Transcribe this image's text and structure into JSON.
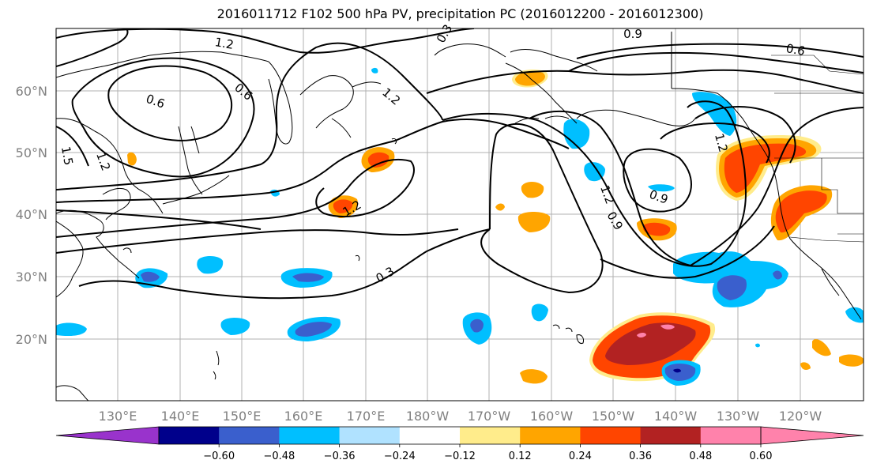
{
  "title": "2016011712 F102 500 hPa PV, precipitation PC (2016012200 - 2016012300)",
  "map": {
    "lat_labels": [
      "60°N",
      "50°N",
      "40°N",
      "30°N",
      "20°N"
    ],
    "lon_labels": [
      "130°E",
      "140°E",
      "150°E",
      "160°E",
      "170°E",
      "180°W",
      "170°W",
      "160°W",
      "150°W",
      "140°W",
      "130°W",
      "120°W"
    ],
    "contour_labels": [
      "1.2",
      "0.9",
      "0.6",
      "0.3",
      "0.6",
      "1.5",
      "1.2",
      "1.2",
      "1.2",
      "0.3",
      "1.2",
      "0.9",
      "0.9",
      "1.2",
      "0.6"
    ]
  },
  "colorbar": {
    "labels": [
      "−0.60",
      "−0.48",
      "−0.36",
      "−0.24",
      "−0.12",
      "0.12",
      "0.24",
      "0.36",
      "0.48",
      "0.60"
    ],
    "colors": [
      "#9933cc",
      "#00008b",
      "#3a5fcd",
      "#00bfff",
      "#b0e2ff",
      "#ffffff",
      "#ffec8b",
      "#ffa500",
      "#ff4500",
      "#b22222",
      "#ff82ab",
      "#ff82ab"
    ]
  },
  "fill_colors": {
    "neg_weak": "#00bfff",
    "neg_mid": "#3a5fcd",
    "neg_strong": "#00008b",
    "neg_pale": "#b0e2ff",
    "pos_pale": "#ffec8b",
    "pos_weak": "#ffa500",
    "pos_mid": "#ff4500",
    "pos_strong": "#b22222",
    "pos_max": "#ff82ab"
  }
}
